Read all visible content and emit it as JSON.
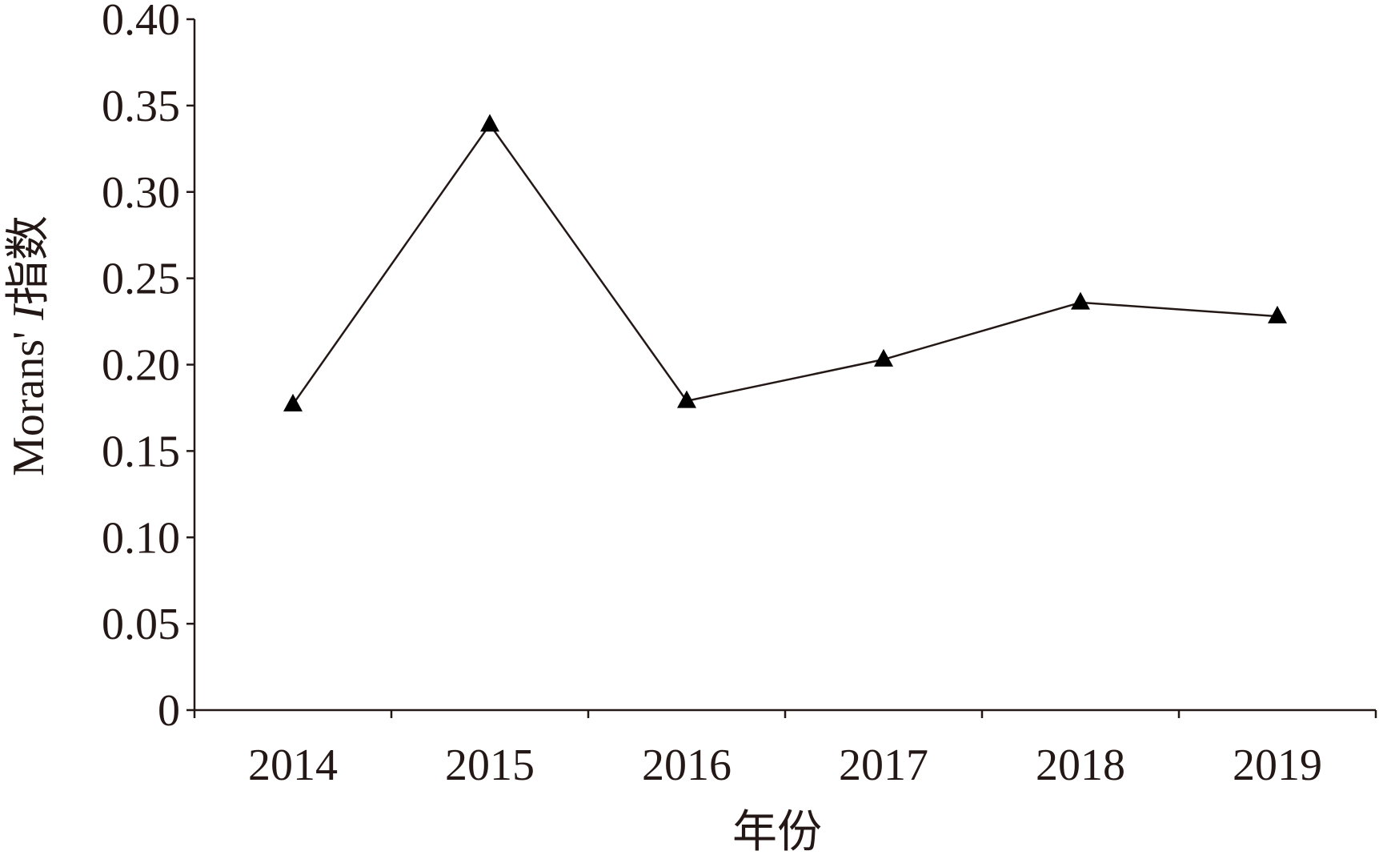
{
  "chart_data": {
    "type": "line",
    "title": "",
    "xlabel": "年份",
    "ylabel": {
      "prefix": "Morans' ",
      "italic": "I",
      "suffix": "指数"
    },
    "categories": [
      "2014",
      "2015",
      "2016",
      "2017",
      "2018",
      "2019"
    ],
    "series": [
      {
        "values": [
          0.177,
          0.339,
          0.179,
          0.203,
          0.236,
          0.228
        ],
        "marker": "triangle",
        "color": "#000000"
      }
    ],
    "ylim": [
      0,
      0.4
    ],
    "yticks": [
      0,
      0.05,
      0.1,
      0.15,
      0.2,
      0.25,
      0.3,
      0.35,
      0.4
    ],
    "ytick_labels": [
      "0",
      "0.05",
      "0.10",
      "0.15",
      "0.20",
      "0.25",
      "0.30",
      "0.35",
      "0.40"
    ],
    "grid": false,
    "legend": "none"
  }
}
